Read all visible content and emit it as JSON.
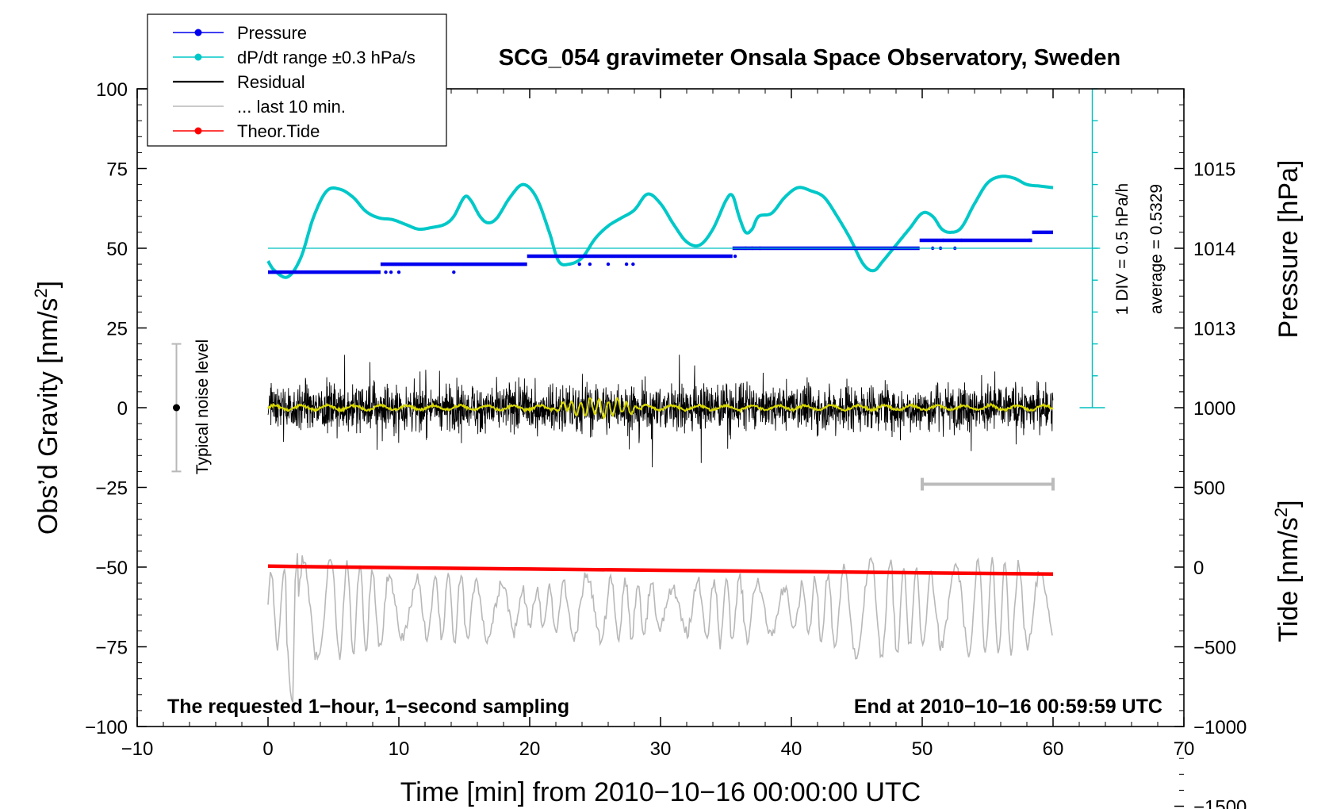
{
  "chart_data": {
    "type": "line",
    "title": "SCG_054 gravimeter Onsala Space Observatory, Sweden",
    "xlabel": "Time [min] from 2010−10−16 00:00:00 UTC",
    "ylabel_left": "Obs’d Gravity [nm/s²]",
    "ylabel_right_top": "Pressure [hPa]",
    "ylabel_right_bottom": "Tide [nm/s²]",
    "xlim": [
      -10,
      70
    ],
    "ylim_left": [
      -100,
      100
    ],
    "x_ticks": [
      -10,
      0,
      10,
      20,
      30,
      40,
      50,
      60,
      70
    ],
    "x_tick_labels": [
      "−10",
      "0",
      "10",
      "20",
      "30",
      "40",
      "50",
      "60",
      "70"
    ],
    "y_ticks_left": [
      -100,
      -75,
      -50,
      -25,
      0,
      25,
      50,
      75,
      100
    ],
    "y_tick_labels_left": [
      "−100",
      "−75",
      "−50",
      "−25",
      "0",
      "25",
      "50",
      "75",
      "100"
    ],
    "pressure_axis": {
      "ticks": [
        1013,
        1014,
        1015
      ],
      "tick_labels": [
        "1013",
        "1014",
        "1015"
      ],
      "hpa_per_left_unit": 0.04,
      "ref_hpa": 1014,
      "ref_left": 50
    },
    "tide_axis": {
      "ticks": [
        -1500,
        -1000,
        -500,
        0,
        500,
        1000
      ],
      "tick_labels": [
        "−1500",
        "−1000",
        "−500",
        "0",
        "500",
        "1000"
      ],
      "tide_per_left_unit": 20,
      "ref_tide": 0,
      "ref_left": -50
    },
    "legend": {
      "placement": "top-left",
      "entries": [
        {
          "label": "Pressure",
          "color": "#0000ee",
          "marker": true
        },
        {
          "label": "dP/dt range ±0.3 hPa/s",
          "color": "#00c8c8",
          "marker": true
        },
        {
          "label": "Residual",
          "color": "#000000",
          "marker": false
        },
        {
          "label": "... last 10 min.",
          "color": "#b8b8b8",
          "marker": false
        },
        {
          "label": "Theor.Tide",
          "color": "#ff0000",
          "marker": true
        }
      ]
    },
    "annotations": {
      "bottom_left": "The requested 1−hour, 1−second sampling",
      "bottom_right": "End at 2010−10−16 00:59:59 UTC",
      "scale_div": "1 DIV = 0.5 hPa/h",
      "scale_avg": "average = 0.5329",
      "noise": "Typical noise level"
    },
    "noise_bar": {
      "x": -7,
      "y_low": -20,
      "y_high": 20,
      "y_center": 0
    },
    "last10_bar": {
      "x_start": 50,
      "x_end": 60,
      "y": -24
    },
    "dpdt_scale": {
      "x": 63,
      "y_bottom": 0,
      "y_top": 100,
      "divisions": 10,
      "reference_y": 50
    },
    "series": [
      {
        "name": "dP/dt",
        "color": "#00c8c8",
        "points": [
          [
            0,
            46
          ],
          [
            0.5,
            43
          ],
          [
            1.5,
            41
          ],
          [
            2.5,
            47
          ],
          [
            3.5,
            60
          ],
          [
            4.5,
            68
          ],
          [
            5.5,
            68.5
          ],
          [
            6.5,
            66
          ],
          [
            7.5,
            61.5
          ],
          [
            8.5,
            59.5
          ],
          [
            9.5,
            59
          ],
          [
            10.5,
            57.5
          ],
          [
            11.5,
            56
          ],
          [
            12.5,
            56.5
          ],
          [
            13.5,
            57.5
          ],
          [
            14.2,
            60
          ],
          [
            15,
            66
          ],
          [
            15.5,
            65
          ],
          [
            16.2,
            60
          ],
          [
            16.8,
            58
          ],
          [
            17.5,
            59.5
          ],
          [
            18.5,
            66
          ],
          [
            19.5,
            70
          ],
          [
            20.5,
            66
          ],
          [
            21.5,
            55
          ],
          [
            22.2,
            46
          ],
          [
            23,
            45
          ],
          [
            24,
            47
          ],
          [
            25,
            53
          ],
          [
            26,
            57
          ],
          [
            27,
            59.5
          ],
          [
            28,
            62
          ],
          [
            29,
            67
          ],
          [
            30,
            64
          ],
          [
            31,
            57.5
          ],
          [
            32,
            52
          ],
          [
            33,
            51
          ],
          [
            34,
            56
          ],
          [
            35,
            65
          ],
          [
            35.5,
            66.5
          ],
          [
            36,
            60
          ],
          [
            36.5,
            55
          ],
          [
            37,
            56
          ],
          [
            37.5,
            60
          ],
          [
            38.5,
            61
          ],
          [
            39.5,
            66
          ],
          [
            40.5,
            69
          ],
          [
            41.5,
            68
          ],
          [
            42.5,
            66
          ],
          [
            43.5,
            60
          ],
          [
            44.5,
            53
          ],
          [
            45.5,
            45
          ],
          [
            46.3,
            43
          ],
          [
            47,
            46
          ],
          [
            48,
            51
          ],
          [
            49,
            56
          ],
          [
            50,
            61
          ],
          [
            50.8,
            60
          ],
          [
            51.5,
            56
          ],
          [
            52.2,
            55
          ],
          [
            53,
            56.5
          ],
          [
            54,
            64
          ],
          [
            55,
            70.5
          ],
          [
            56,
            72.5
          ],
          [
            57,
            72
          ],
          [
            58,
            70
          ],
          [
            59,
            69.5
          ],
          [
            60,
            69
          ]
        ]
      },
      {
        "name": "Pressure",
        "color": "#0000ee",
        "runs": [
          [
            0,
            8.6,
            42.5
          ],
          [
            8.6,
            19.8,
            45
          ],
          [
            19.8,
            35.5,
            47.5
          ],
          [
            35.5,
            49.8,
            50
          ],
          [
            49.8,
            58.4,
            52.5
          ],
          [
            58.4,
            60,
            55
          ]
        ],
        "dots": [
          [
            9,
            42.5
          ],
          [
            9.4,
            42.5
          ],
          [
            10,
            42.5
          ],
          [
            14.2,
            42.5
          ],
          [
            23.8,
            45
          ],
          [
            24.6,
            45
          ],
          [
            26,
            45
          ],
          [
            27.4,
            45
          ],
          [
            27.9,
            45
          ],
          [
            35.7,
            47.5
          ],
          [
            36.5,
            50
          ],
          [
            37,
            50
          ],
          [
            37.6,
            50
          ],
          [
            50.8,
            50
          ],
          [
            51.4,
            50
          ],
          [
            51.6,
            52.5
          ],
          [
            52.5,
            50
          ],
          [
            53,
            52.5
          ],
          [
            58.2,
            52.5
          ]
        ]
      },
      {
        "name": "Theor.Tide",
        "color": "#ff0000",
        "points": [
          [
            0,
            -49.7
          ],
          [
            10,
            -50.2
          ],
          [
            20,
            -50.6
          ],
          [
            30,
            -51
          ],
          [
            40,
            -51.4
          ],
          [
            50,
            -51.8
          ],
          [
            60,
            -52.2
          ]
        ]
      }
    ]
  }
}
